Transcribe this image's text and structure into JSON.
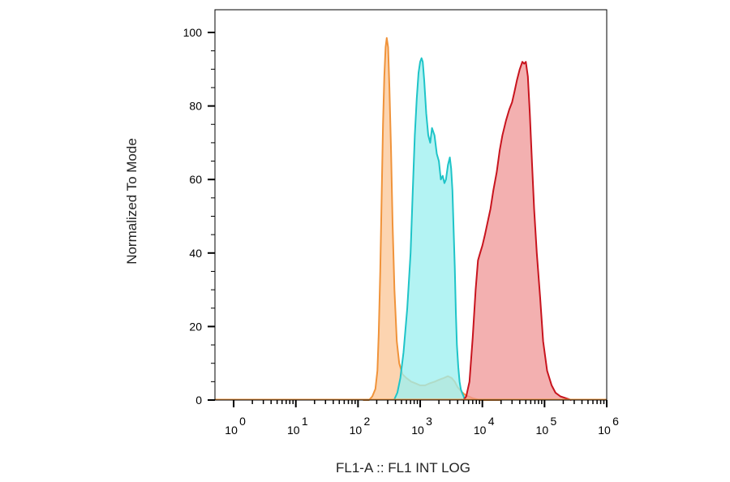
{
  "chart_data": {
    "type": "area",
    "title": "",
    "xlabel": "FL1-A :: FL1 INT LOG",
    "ylabel": "Normalized To Mode",
    "x_scale": "log",
    "xlim": [
      0.5,
      1000000
    ],
    "ylim": [
      0,
      100
    ],
    "y_ticks": [
      0,
      20,
      40,
      60,
      80,
      100
    ],
    "x_ticks": [
      {
        "base": "10",
        "exp": "0",
        "value": 1
      },
      {
        "base": "10",
        "exp": "1",
        "value": 10
      },
      {
        "base": "10",
        "exp": "2",
        "value": 100
      },
      {
        "base": "10",
        "exp": "3",
        "value": 1000
      },
      {
        "base": "10",
        "exp": "4",
        "value": 10000
      },
      {
        "base": "10",
        "exp": "5",
        "value": 100000
      },
      {
        "base": "10",
        "exp": "6",
        "value": 1000000
      }
    ],
    "grid": false,
    "legend": "none",
    "series": [
      {
        "color": "#f0933a",
        "fill": "#fbc89a",
        "x": [
          120,
          150,
          170,
          190,
          205,
          215,
          228,
          240,
          252,
          265,
          278,
          290,
          305,
          320,
          340,
          360,
          385,
          420,
          460,
          520,
          600,
          720,
          850,
          1000,
          1200,
          1400,
          1700,
          2000,
          2400,
          2800,
          3200,
          3600,
          4000,
          4500,
          5200,
          6000,
          7000,
          9000,
          20000
        ],
        "y": [
          0,
          0,
          1,
          3,
          8,
          18,
          35,
          55,
          75,
          88,
          96,
          98.5,
          96,
          85,
          68,
          48,
          30,
          16,
          10,
          7,
          6,
          5,
          4.5,
          4,
          4,
          4.5,
          5,
          5.5,
          6,
          6.5,
          6,
          5,
          3.5,
          2.5,
          1.5,
          1,
          0.5,
          0,
          0
        ]
      },
      {
        "color": "#1ec4c8",
        "fill": "#9ef0f0",
        "x": [
          380,
          430,
          480,
          540,
          620,
          700,
          760,
          820,
          880,
          940,
          1000,
          1050,
          1100,
          1160,
          1250,
          1350,
          1450,
          1550,
          1700,
          1850,
          2000,
          2150,
          2300,
          2450,
          2600,
          2800,
          3000,
          3150,
          3300,
          3450,
          3600,
          3750,
          3900,
          4100,
          4300,
          4500,
          4700,
          5000,
          5200
        ],
        "y": [
          0,
          2,
          6,
          13,
          25,
          40,
          57,
          72,
          82,
          89,
          92,
          93,
          92,
          87,
          78,
          72,
          70,
          74,
          72,
          67,
          65,
          60,
          61,
          59,
          60,
          64,
          66,
          63,
          57,
          46,
          36,
          24,
          15,
          9,
          5,
          3,
          2,
          1,
          0
        ]
      },
      {
        "color": "#c8141e",
        "fill": "#f09a9a",
        "x": [
          5000,
          5500,
          6200,
          7000,
          7800,
          8500,
          9200,
          10000,
          11000,
          12000,
          13500,
          15000,
          17000,
          19000,
          21000,
          24000,
          27000,
          30000,
          33000,
          36000,
          40000,
          44000,
          47000,
          50000,
          54000,
          58000,
          63000,
          68000,
          75000,
          85000,
          95000,
          110000,
          130000,
          150000,
          180000,
          220000,
          270000
        ],
        "y": [
          0,
          1,
          5,
          17,
          30,
          38,
          40,
          42,
          45,
          48,
          52,
          57,
          62,
          68,
          72,
          76,
          79,
          81,
          84,
          87,
          90,
          92,
          91.5,
          92,
          88,
          78,
          64,
          52,
          40,
          28,
          16,
          8,
          4,
          2,
          1,
          0.5,
          0
        ]
      }
    ]
  }
}
